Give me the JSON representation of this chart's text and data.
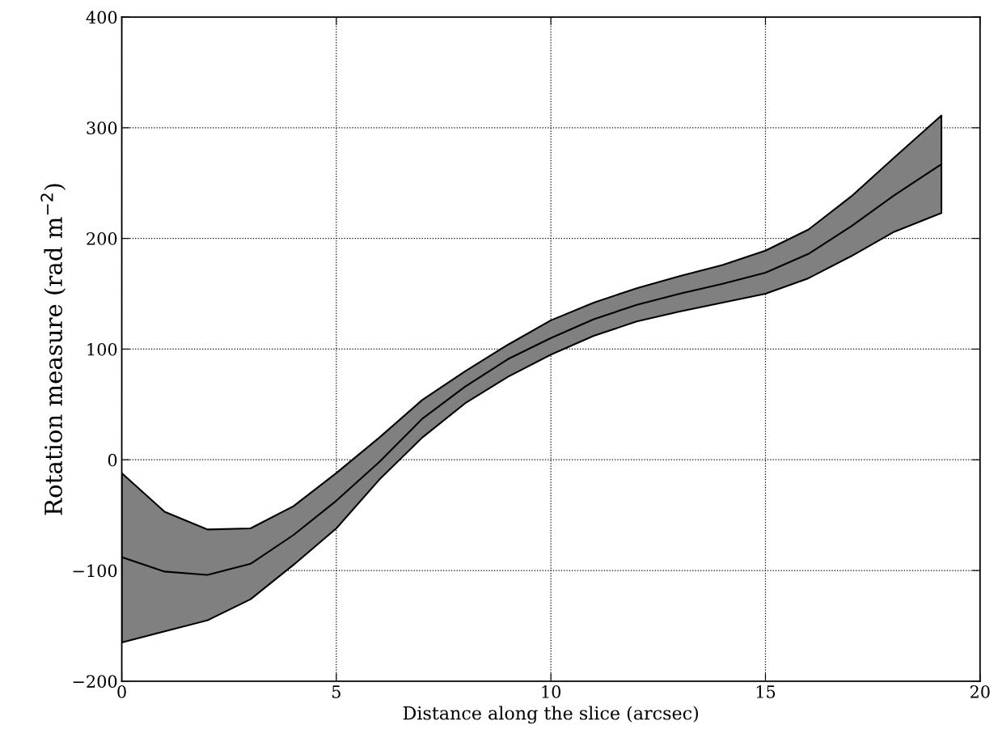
{
  "chart_data": {
    "type": "line",
    "xlabel": "Distance along the slice (arcsec)",
    "ylabel": "Rotation measure (rad m$^{−2}$)",
    "xlim": [
      0,
      20
    ],
    "xticks": [
      0,
      5,
      10,
      15,
      20
    ],
    "ylim": [
      -200,
      400
    ],
    "yticks": [
      {
        "value": -200,
        "label": "−200"
      },
      {
        "value": -100,
        "label": "−100"
      },
      0,
      100,
      200,
      300,
      400
    ],
    "grid": true,
    "legend": false,
    "marker": "none",
    "line_style": "solid",
    "series": [
      {
        "color": "#000000",
        "x": [
          0,
          1,
          2,
          3,
          4,
          5,
          6,
          7,
          8,
          9,
          10,
          11,
          12,
          13,
          14,
          15,
          16,
          17,
          18,
          19.1
        ],
        "values": [
          -88,
          -101,
          -104,
          -94,
          -68,
          -37,
          -2,
          37,
          66,
          91,
          110,
          127,
          140,
          150,
          159,
          169,
          186,
          211,
          239,
          267
        ],
        "upper": [
          -12,
          -47,
          -63,
          -62,
          -42,
          -12,
          20,
          54,
          80,
          104,
          126,
          142,
          155,
          166,
          176,
          189,
          208,
          238,
          273,
          311
        ],
        "lower": [
          -165,
          -155,
          -145,
          -126,
          -95,
          -62,
          -18,
          20,
          51,
          75,
          95,
          112,
          125,
          134,
          142,
          150,
          164,
          184,
          206,
          223
        ]
      }
    ]
  }
}
